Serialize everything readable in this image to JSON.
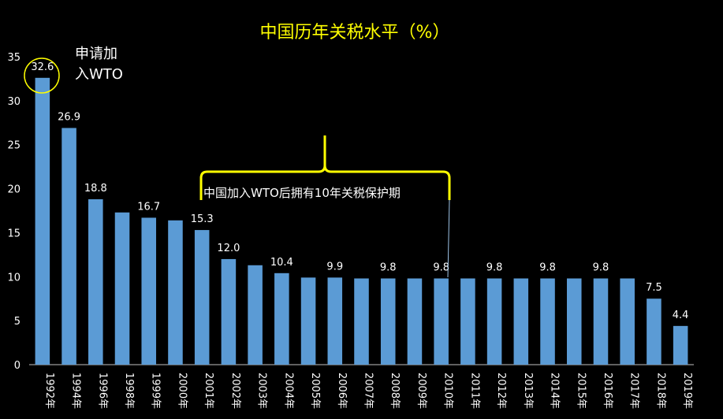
{
  "chart_data": {
    "type": "bar",
    "title": "中国历年关税水平（%）",
    "xlabel": "",
    "ylabel": "",
    "ylim": [
      0,
      35
    ],
    "yticks": [
      0,
      5,
      10,
      15,
      20,
      25,
      30,
      35
    ],
    "grid": false,
    "legend": "none",
    "bar_color": "#5b9bd5",
    "background": "#000000",
    "categories": [
      "1992年",
      "1994年",
      "1996年",
      "1998年",
      "1999年",
      "2000年",
      "2001年",
      "2002年",
      "2003年",
      "2004年",
      "2005年",
      "2006年",
      "2007年",
      "2008年",
      "2009年",
      "2010年",
      "2011年",
      "2012年",
      "2013年",
      "2014年",
      "2015年",
      "2016年",
      "2017年",
      "2018年",
      "2019年"
    ],
    "values": [
      32.6,
      26.9,
      18.8,
      17.3,
      16.7,
      16.4,
      15.3,
      12.0,
      11.3,
      10.4,
      9.9,
      9.9,
      9.8,
      9.8,
      9.8,
      9.8,
      9.8,
      9.8,
      9.8,
      9.8,
      9.8,
      9.8,
      9.8,
      7.5,
      4.4
    ],
    "data_labels": [
      "32.6",
      "26.9",
      "18.8",
      "",
      "16.7",
      "",
      "15.3",
      "12.0",
      "",
      "10.4",
      "",
      "9.9",
      "",
      "9.8",
      "",
      "9.8",
      "",
      "9.8",
      "",
      "9.8",
      "",
      "9.8",
      "",
      "7.5",
      "4.4"
    ],
    "annotations": {
      "wto_join": "申请加入WTO",
      "wto_join_line1": "申请加",
      "wto_join_line2": "入WTO",
      "protection_period": "中国加入WTO后拥有10年关税保护期",
      "highlight_color": "#ffff00"
    }
  }
}
